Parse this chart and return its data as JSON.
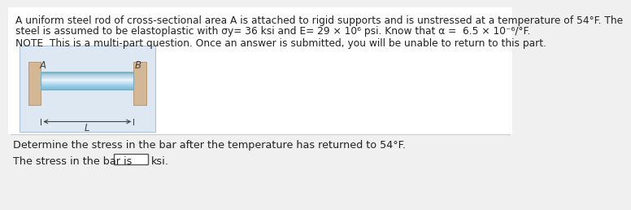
{
  "background_color": "#f0f0f0",
  "top_panel_bg": "#ffffff",
  "title_lines": [
    "A uniform steel rod of cross-sectional area A is attached to rigid supports and is unstressed at a temperature of 54°F. The",
    "steel is assumed to be elastoplastic with σy= 36 ksi and E= 29 × 10⁶ psi. Know that α =  6.5 × 10⁻⁶/°F."
  ],
  "note_line": "NOTE  This is a multi-part question. Once an answer is submitted, you will be unable to return to this part.",
  "question_line": "Determine the stress in the bar after the temperature has returned to 54°F.",
  "answer_line_prefix": "The stress in the bar is",
  "answer_line_suffix": "ksi.",
  "diagram": {
    "outer_bg": "#dde8f2",
    "outer_border": "#b0c4d8",
    "wall_color": "#d4b896",
    "wall_border": "#b09070",
    "rod_top_color": "#cce0ee",
    "rod_mid_color": "#7ab8d4",
    "rod_bottom_color": "#a8cce0",
    "rod_border": "#7aaabb",
    "label_A": "A",
    "label_B": "B",
    "label_L": "L"
  },
  "divider_color": "#cccccc",
  "text_color": "#222222",
  "font_size_main": 8.8,
  "font_size_note": 8.8,
  "font_size_question": 9.2,
  "font_size_answer": 9.2
}
